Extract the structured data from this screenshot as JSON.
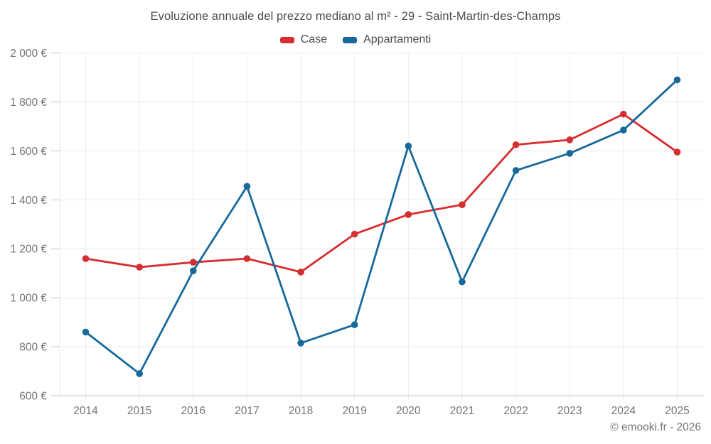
{
  "chart_data": {
    "type": "line",
    "title": "Evoluzione annuale del prezzo mediano al m² - 29 - Saint-Martin-des-Champs",
    "categories": [
      "2014",
      "2015",
      "2016",
      "2017",
      "2018",
      "2019",
      "2020",
      "2021",
      "2022",
      "2023",
      "2024",
      "2025"
    ],
    "series": [
      {
        "name": "Case",
        "color": "#d62d30",
        "values": [
          1160,
          1125,
          1145,
          1160,
          1105,
          1260,
          1340,
          1380,
          1625,
          1645,
          1750,
          1595
        ]
      },
      {
        "name": "Appartamenti",
        "color": "#17699c",
        "values": [
          860,
          690,
          1110,
          1455,
          815,
          890,
          1620,
          1065,
          1520,
          1590,
          1685,
          1890
        ]
      }
    ],
    "xlabel": "",
    "ylabel": "",
    "ylim": [
      600,
      2000
    ],
    "yticks": [
      {
        "value": 600,
        "label": "600 €"
      },
      {
        "value": 800,
        "label": "800 €"
      },
      {
        "value": 1000,
        "label": "1 000 €"
      },
      {
        "value": 1200,
        "label": "1 200 €"
      },
      {
        "value": 1400,
        "label": "1 400 €"
      },
      {
        "value": 1600,
        "label": "1 600 €"
      },
      {
        "value": 1800,
        "label": "1 800 €"
      },
      {
        "value": 2000,
        "label": "2 000 €"
      }
    ],
    "grid": true,
    "legend_position": "top"
  },
  "colors": {
    "grid": "#ececec",
    "axis": "#c6c6c6",
    "tick_label": "#757575",
    "title_text": "#4c4c4c"
  },
  "footer": {
    "copyright": "© emooki.fr - 2026"
  }
}
